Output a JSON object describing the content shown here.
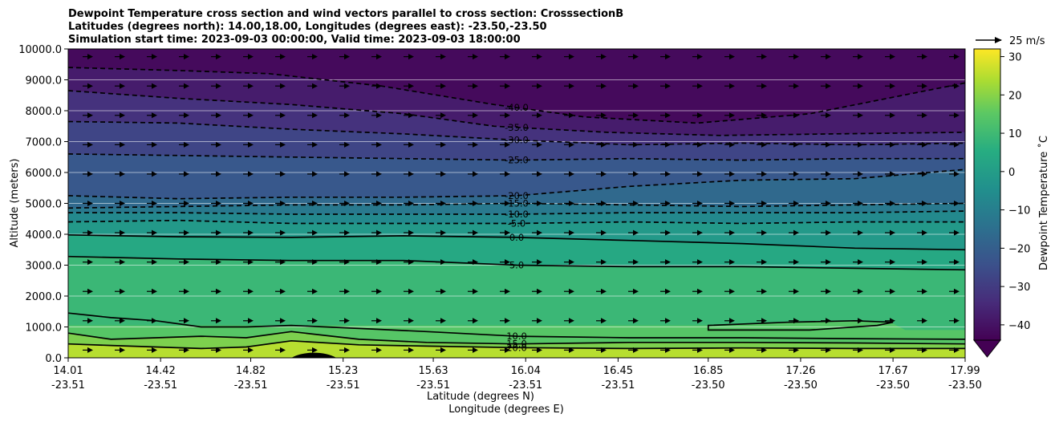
{
  "chart_data": {
    "type": "cross-section contour with wind vectors",
    "title_lines": [
      "Dewpoint Temperature cross section and wind vectors parallel to cross section: CrosssectionB",
      "Latitudes (degrees north): 14.00,18.00, Longitudes (degrees east): -23.50,-23.50",
      "Simulation start time: 2023-09-03 00:00:00, Valid time: 2023-09-03 18:00:00"
    ],
    "xlabel": "Latitude (degrees N)",
    "xlabel2": "Longitude (degrees E)",
    "ylabel": "Altitude (meters)",
    "colorbar_label": "Dewpoint Temperature ˚C",
    "colorbar_ticks": [
      30,
      20,
      10,
      0,
      -10,
      -20,
      -30,
      -40
    ],
    "colorbar_ticks_text": [
      "30",
      "20",
      "10",
      "0",
      "−10",
      "−20",
      "−30",
      "−40"
    ],
    "colorbar_range": [
      -44,
      32
    ],
    "colorbar_extend": "min",
    "quiver_key_label": "25 m/s",
    "xlim": [
      14.01,
      17.99
    ],
    "ylim": [
      0,
      10000
    ],
    "x_ticks": [
      {
        "lat": "14.01",
        "lon": "-23.51",
        "value": 14.01
      },
      {
        "lat": "14.42",
        "lon": "-23.51",
        "value": 14.42
      },
      {
        "lat": "14.82",
        "lon": "-23.51",
        "value": 14.82
      },
      {
        "lat": "15.23",
        "lon": "-23.51",
        "value": 15.23
      },
      {
        "lat": "15.63",
        "lon": "-23.51",
        "value": 15.63
      },
      {
        "lat": "16.04",
        "lon": "-23.51",
        "value": 16.04
      },
      {
        "lat": "16.45",
        "lon": "-23.51",
        "value": 16.45
      },
      {
        "lat": "16.85",
        "lon": "-23.50",
        "value": 16.85
      },
      {
        "lat": "17.26",
        "lon": "-23.50",
        "value": 17.26
      },
      {
        "lat": "17.67",
        "lon": "-23.50",
        "value": 17.67
      },
      {
        "lat": "17.99",
        "lon": "-23.50",
        "value": 17.99
      }
    ],
    "y_ticks": [
      "0.0",
      "1000.0",
      "2000.0",
      "3000.0",
      "4000.0",
      "5000.0",
      "6000.0",
      "7000.0",
      "8000.0",
      "9000.0",
      "10000.0"
    ],
    "y_tick_values": [
      0,
      1000,
      2000,
      3000,
      4000,
      5000,
      6000,
      7000,
      8000,
      9000,
      10000
    ],
    "grid": "horizontal lines at y ticks",
    "wind_vectors": "uniform grid, all pointing toward increasing latitude",
    "terrain_peak": {
      "lat": 15.1,
      "altitude": 220
    },
    "contours": [
      {
        "level": -40,
        "label": "-40.0",
        "style": "dashed",
        "x": [
          14.01,
          14.5,
          14.9,
          15.4,
          15.9,
          16.3,
          16.8,
          17.3,
          17.99
        ],
        "y": [
          9400,
          9300,
          9200,
          8800,
          8200,
          7800,
          7600,
          7900,
          8900
        ]
      },
      {
        "level": -35,
        "label": "-35.0",
        "style": "dashed",
        "x": [
          14.01,
          14.5,
          15.0,
          15.5,
          15.9,
          16.4,
          16.9,
          17.4,
          17.99
        ],
        "y": [
          8650,
          8400,
          8200,
          7900,
          7500,
          7300,
          7200,
          7250,
          7300
        ]
      },
      {
        "level": -30,
        "label": "-30.0",
        "style": "dashed",
        "x": [
          14.01,
          14.5,
          15.0,
          15.5,
          16.0,
          16.5,
          17.0,
          17.5,
          17.99
        ],
        "y": [
          7650,
          7600,
          7400,
          7250,
          7050,
          6900,
          6950,
          6900,
          6950
        ]
      },
      {
        "level": -25,
        "label": "-25.0",
        "style": "dashed",
        "x": [
          14.01,
          14.5,
          15.0,
          15.5,
          16.0,
          16.5,
          17.0,
          17.5,
          17.99
        ],
        "y": [
          6600,
          6550,
          6500,
          6450,
          6400,
          6450,
          6400,
          6450,
          6450
        ]
      },
      {
        "level": -20,
        "label": "-20.0",
        "style": "dashed",
        "x": [
          14.01,
          14.5,
          15.0,
          15.5,
          16.0,
          16.5,
          17.0,
          17.5,
          17.99
        ],
        "y": [
          5250,
          5150,
          5200,
          5200,
          5250,
          5550,
          5750,
          5800,
          6100
        ]
      },
      {
        "level": -15,
        "label": "-15.0",
        "style": "dashed",
        "x": [
          14.01,
          14.5,
          15.0,
          15.5,
          16.0,
          16.5,
          17.0,
          17.5,
          17.99
        ],
        "y": [
          4850,
          4900,
          4950,
          4950,
          5000,
          4950,
          4900,
          4950,
          5000
        ]
      },
      {
        "level": -10,
        "label": "-10.0",
        "style": "dashed",
        "x": [
          14.01,
          14.5,
          15.0,
          15.5,
          16.0,
          16.5,
          17.0,
          17.5,
          17.99
        ],
        "y": [
          4700,
          4700,
          4650,
          4650,
          4650,
          4700,
          4700,
          4700,
          4750
        ]
      },
      {
        "level": -5,
        "label": "-5.0",
        "style": "dashed",
        "x": [
          14.01,
          14.5,
          15.0,
          15.5,
          16.0,
          16.5,
          17.0,
          17.5,
          17.99
        ],
        "y": [
          4400,
          4450,
          4350,
          4350,
          4350,
          4400,
          4350,
          4400,
          4400
        ]
      },
      {
        "level": 0,
        "label": "0.0",
        "style": "solid",
        "x": [
          14.01,
          14.5,
          15.0,
          15.5,
          16.0,
          16.5,
          17.0,
          17.5,
          17.99
        ],
        "y": [
          3980,
          3920,
          3900,
          3950,
          3900,
          3800,
          3700,
          3550,
          3500
        ]
      },
      {
        "level": 5,
        "label": "5.0",
        "style": "solid",
        "x": [
          14.01,
          14.5,
          15.0,
          15.5,
          16.0,
          16.5,
          17.0,
          17.5,
          17.99
        ],
        "y": [
          3280,
          3200,
          3150,
          3150,
          3000,
          2950,
          2950,
          2900,
          2850
        ]
      },
      {
        "level": 10,
        "label": "10.0",
        "style": "solid",
        "x": [
          14.01,
          14.2,
          14.4,
          14.6,
          14.8,
          15.0,
          15.3,
          15.6,
          16.0,
          16.5,
          17.0,
          17.5,
          17.99
        ],
        "y": [
          1450,
          1300,
          1200,
          1000,
          1000,
          1050,
          950,
          850,
          700,
          650,
          650,
          620,
          600
        ]
      },
      {
        "level": 15,
        "label": "15.0",
        "style": "solid",
        "x": [
          14.01,
          14.2,
          14.4,
          14.6,
          14.8,
          15.0,
          15.3,
          15.6,
          16.0,
          16.5,
          17.0,
          17.5,
          17.99
        ],
        "y": [
          800,
          600,
          650,
          700,
          650,
          850,
          600,
          500,
          450,
          500,
          500,
          480,
          450
        ]
      },
      {
        "level": 20,
        "label": "20.0",
        "style": "solid",
        "x": [
          14.01,
          14.2,
          14.4,
          14.6,
          14.8,
          15.0,
          15.3,
          15.6,
          16.0,
          16.5,
          17.0,
          17.5,
          17.99
        ],
        "y": [
          450,
          400,
          350,
          300,
          350,
          550,
          420,
          380,
          330,
          300,
          320,
          300,
          300
        ]
      },
      {
        "level": 10,
        "label": "10.0",
        "style": "solid",
        "x": [
          16.85,
          17.2,
          17.5,
          17.67,
          17.6,
          17.3,
          16.85
        ],
        "y": [
          1050,
          1150,
          1200,
          1150,
          1050,
          900,
          900
        ]
      }
    ]
  }
}
